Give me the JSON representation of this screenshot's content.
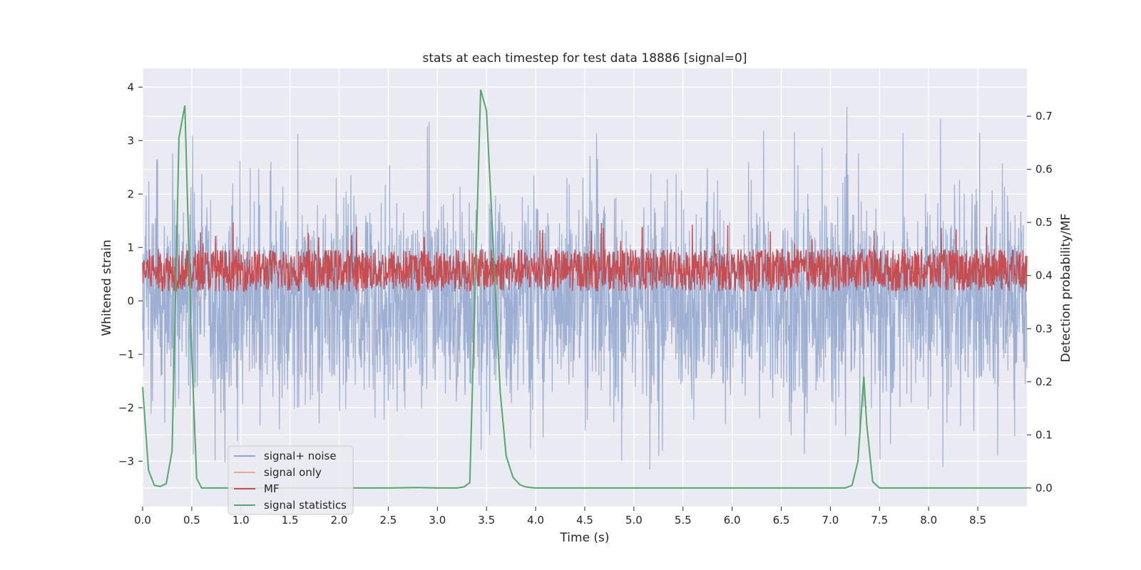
{
  "chart_data": {
    "type": "line",
    "title": "stats at each timestep for test data 18886 [signal=0]",
    "xlabel": "Time (s)",
    "ylabel": "Whitened strain",
    "y2label": "Detection probability/MF",
    "xlim": [
      0.0,
      9.0
    ],
    "ylim": [
      -3.85,
      4.35
    ],
    "y2lim": [
      -0.035,
      0.79
    ],
    "x_ticks": [
      0.0,
      0.5,
      1.0,
      1.5,
      2.0,
      2.5,
      3.0,
      3.5,
      4.0,
      4.5,
      5.0,
      5.5,
      6.0,
      6.5,
      7.0,
      7.5,
      8.0,
      8.5
    ],
    "x_tick_labels": [
      "0.0",
      "0.5",
      "1.0",
      "1.5",
      "2.0",
      "2.5",
      "3.0",
      "3.5",
      "4.0",
      "4.5",
      "5.0",
      "5.5",
      "6.0",
      "6.5",
      "7.0",
      "7.5",
      "8.0",
      "8.5"
    ],
    "y_ticks": [
      -3,
      -2,
      -1,
      0,
      1,
      2,
      3,
      4
    ],
    "y_tick_labels": [
      "−3",
      "−2",
      "−1",
      "0",
      "1",
      "2",
      "3",
      "4"
    ],
    "y2_ticks": [
      0.0,
      0.1,
      0.2,
      0.3,
      0.4,
      0.5,
      0.6,
      0.7
    ],
    "y2_tick_labels": [
      "0.0",
      "0.1",
      "0.2",
      "0.3",
      "0.4",
      "0.5",
      "0.6",
      "0.7"
    ],
    "grid": true,
    "legend_position": "lower-left",
    "series": [
      {
        "name": "signal+ noise",
        "axis": "left",
        "color": "#8fa5cd",
        "opacity": 0.85,
        "kind": "noise",
        "description_values": {
          "typical_range": [
            -1.6,
            1.6
          ],
          "max": 4.02,
          "min": -3.55
        }
      },
      {
        "name": "signal only",
        "axis": "left",
        "color": "#e8a98c",
        "x": [],
        "y": []
      },
      {
        "name": "MF",
        "axis": "right",
        "color": "#c44e52",
        "kind": "band",
        "band_range": [
          0.37,
          0.45
        ],
        "baseline": 0.4
      },
      {
        "name": "signal statistics",
        "axis": "right",
        "color": "#55a868",
        "x": [
          0.0,
          0.06,
          0.12,
          0.18,
          0.24,
          0.3,
          0.37,
          0.43,
          0.5,
          0.55,
          0.6,
          1.0,
          2.0,
          2.5,
          2.8,
          3.0,
          3.2,
          3.27,
          3.33,
          3.38,
          3.44,
          3.5,
          3.57,
          3.64,
          3.7,
          3.77,
          3.84,
          3.9,
          3.95,
          4.0,
          5.0,
          6.0,
          7.0,
          7.15,
          7.22,
          7.28,
          7.34,
          7.37,
          7.43,
          7.5,
          8.0,
          9.0
        ],
        "y": [
          0.19,
          0.033,
          0.005,
          0.003,
          0.008,
          0.07,
          0.66,
          0.72,
          0.25,
          0.018,
          0.0,
          0.0,
          0.0,
          0.0,
          0.001,
          0.0,
          0.0,
          0.002,
          0.01,
          0.35,
          0.75,
          0.71,
          0.45,
          0.18,
          0.06,
          0.02,
          0.006,
          0.002,
          0.001,
          0.0,
          0.0,
          0.0,
          0.0,
          0.0,
          0.005,
          0.05,
          0.21,
          0.12,
          0.012,
          0.0,
          0.0,
          0.0
        ]
      }
    ]
  }
}
